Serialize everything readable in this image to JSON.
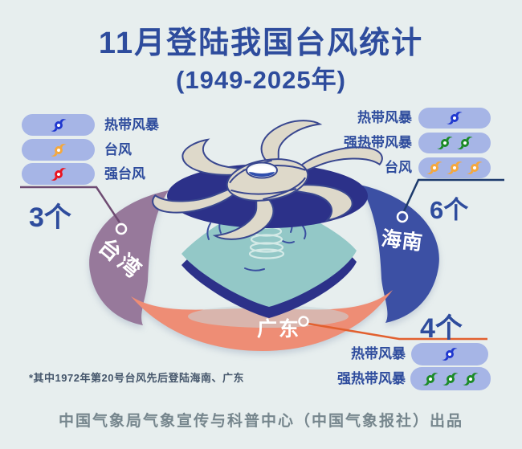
{
  "meta": {
    "title": "11月登陆我国台风统计",
    "subtitle": "(1949-2025年)"
  },
  "colors": {
    "background": "#e7eeee",
    "title_blue": "#2e4c9d",
    "pill": "#a6b5e6",
    "storm_blue": "#2038cf",
    "typhoon_orange": "#f5a83d",
    "severe_typhoon_red": "#ea1420",
    "severe_storm_green": "#1b8b27",
    "taiwan_arc": "#97799b",
    "hainan_arc": "#3c50a4",
    "guangdong_arc": "#ee8d75",
    "sea_teal": "#93c8c7",
    "navy": "#2c3189"
  },
  "regions": {
    "taiwan": "台湾",
    "hainan": "海南",
    "guangdong": "广东"
  },
  "legend_taiwan": {
    "count": "3个",
    "rows": [
      {
        "label": "热带风暴",
        "icons": 1,
        "icon_color": "#2038cf"
      },
      {
        "label": "台风",
        "icons": 1,
        "icon_color": "#f5a83d"
      },
      {
        "label": "强台风",
        "icons": 1,
        "icon_color": "#ea1420"
      }
    ]
  },
  "legend_hainan": {
    "count": "6个",
    "rows": [
      {
        "label": "热带风暴",
        "icons": 1,
        "icon_color": "#2038cf"
      },
      {
        "label": "强热带风暴",
        "icons": 2,
        "icon_color": "#1b8b27"
      },
      {
        "label": "台风",
        "icons": 3,
        "icon_color": "#f5a83d"
      }
    ]
  },
  "legend_guangdong": {
    "count": "4个",
    "rows": [
      {
        "label": "热带风暴",
        "icons": 1,
        "icon_color": "#2038cf"
      },
      {
        "label": "强热带风暴",
        "icons": 3,
        "icon_color": "#1b8b27"
      }
    ]
  },
  "footnote": "*其中1972年第20号台风先后登陆海南、广东",
  "credit": "中国气象局气象宣传与科普中心（中国气象报社）出品",
  "chart_data": {
    "type": "bar",
    "title": "11月登陆我国台风统计",
    "subtitle": "(1949-2025年)",
    "categories": [
      "台湾",
      "海南",
      "广东"
    ],
    "values": [
      3,
      6,
      4
    ],
    "unit": "个",
    "series_detail": [
      {
        "region": "台湾",
        "total": 3,
        "breakdown": [
          {
            "intensity": "热带风暴",
            "count": 1
          },
          {
            "intensity": "台风",
            "count": 1
          },
          {
            "intensity": "强台风",
            "count": 1
          }
        ]
      },
      {
        "region": "海南",
        "total": 6,
        "breakdown": [
          {
            "intensity": "热带风暴",
            "count": 1
          },
          {
            "intensity": "强热带风暴",
            "count": 2
          },
          {
            "intensity": "台风",
            "count": 3
          }
        ]
      },
      {
        "region": "广东",
        "total": 4,
        "breakdown": [
          {
            "intensity": "热带风暴",
            "count": 1
          },
          {
            "intensity": "强热带风暴",
            "count": 3
          }
        ]
      }
    ],
    "note": "*其中1972年第20号台风先后登陆海南、广东",
    "legend_position": "around",
    "source": "中国气象局气象宣传与科普中心（中国气象报社）出品"
  }
}
